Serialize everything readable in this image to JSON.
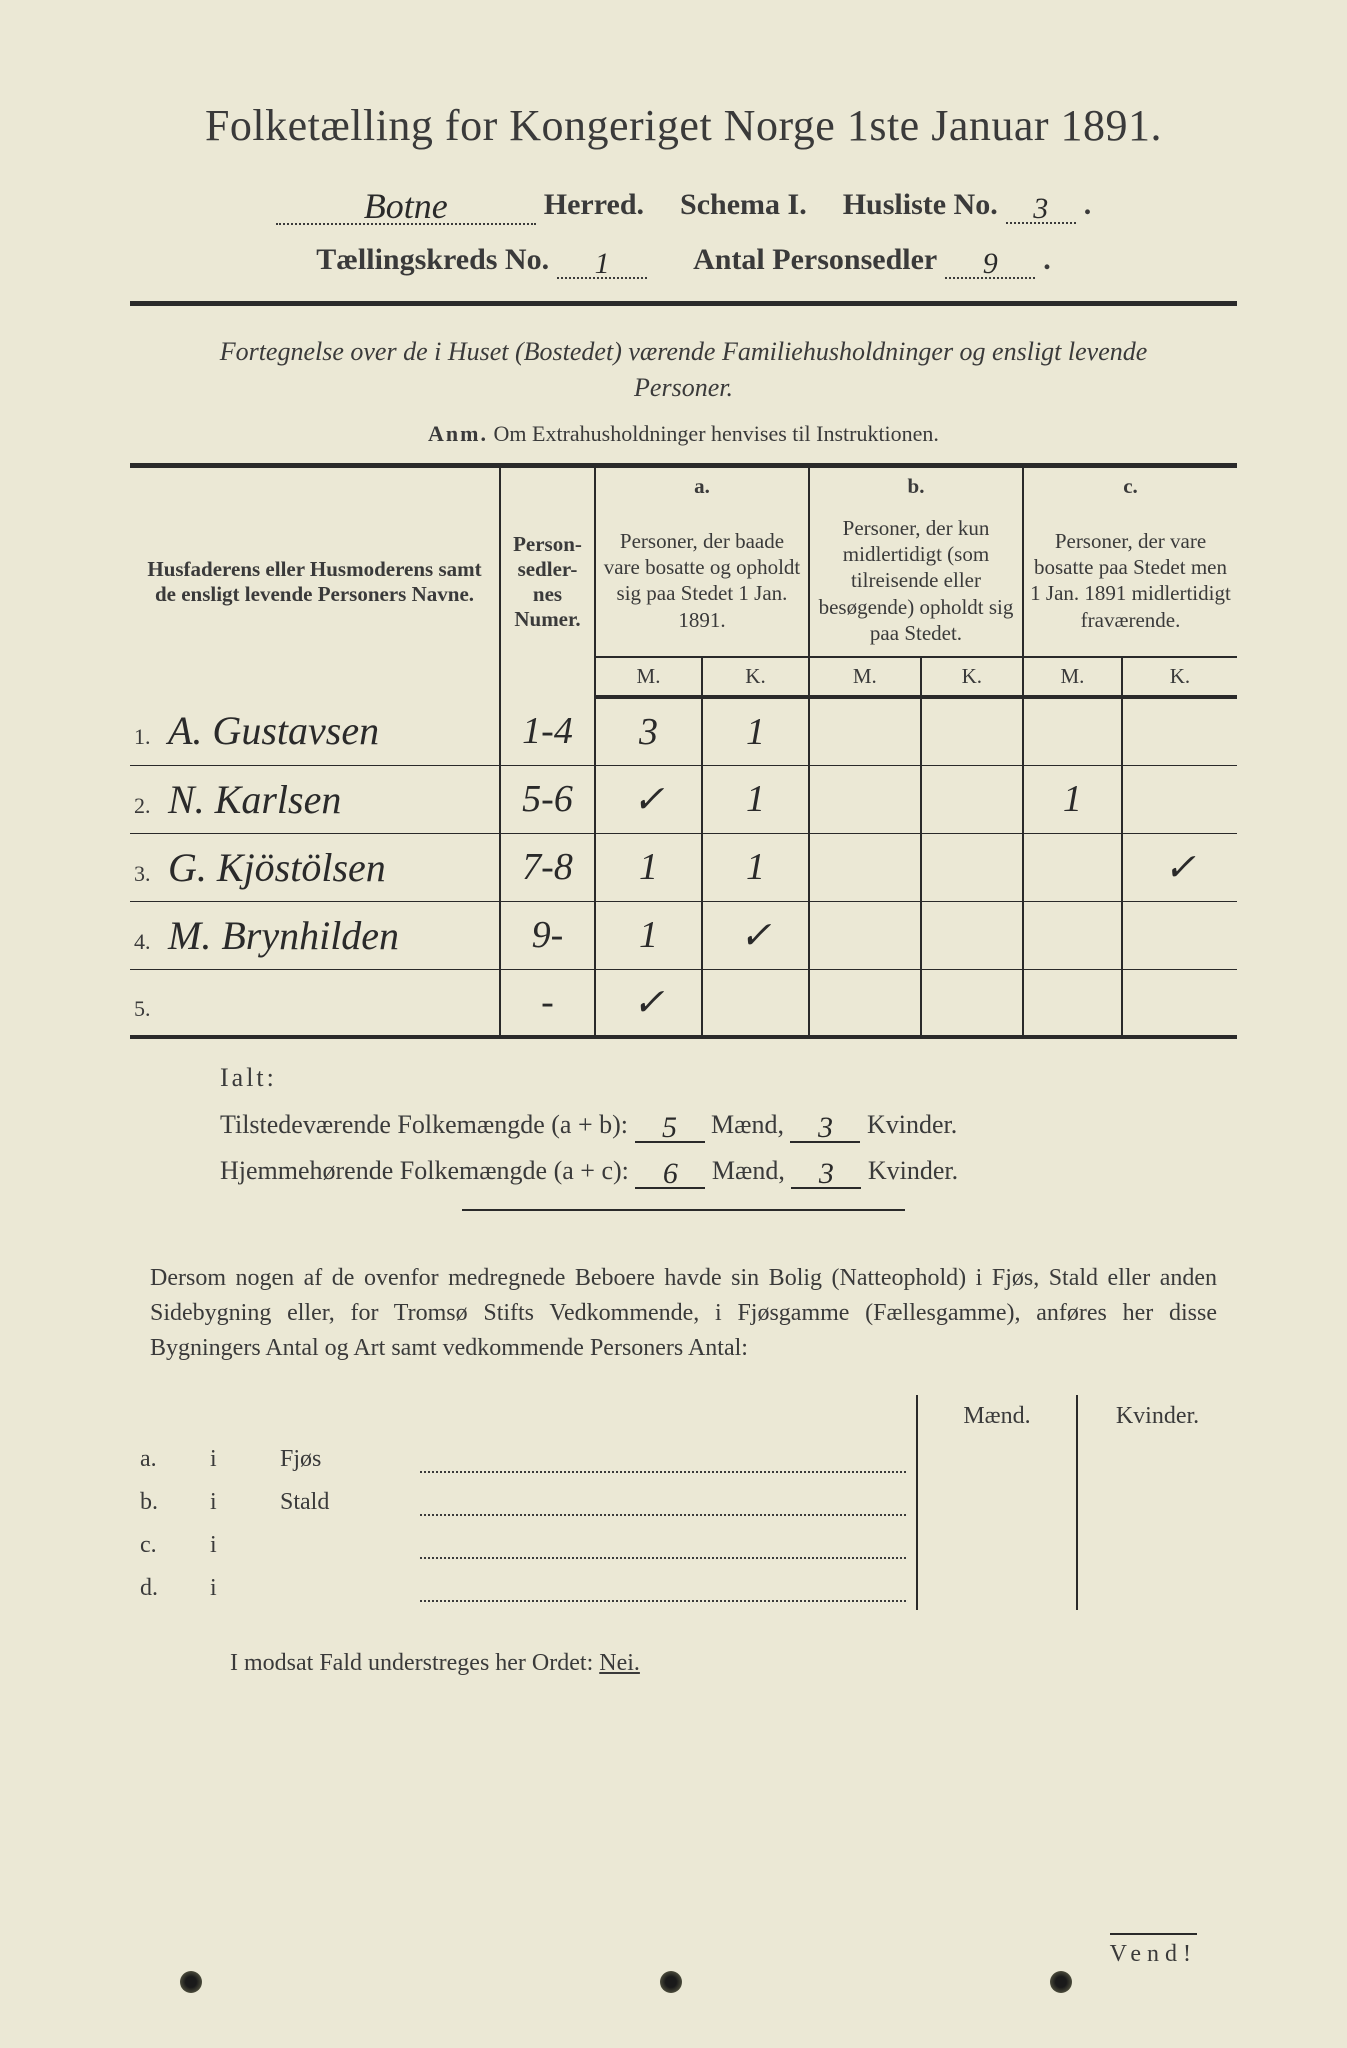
{
  "colors": {
    "paper": "#ebe8d5",
    "ink": "#3a3a3a",
    "handwriting": "#2a2a2a",
    "background": "#2a2a2a"
  },
  "title": "Folketælling for Kongeriget Norge 1ste Januar 1891.",
  "header": {
    "herred_value": "Botne",
    "herred_label": "Herred.",
    "schema_label": "Schema I.",
    "husliste_label": "Husliste No.",
    "husliste_value": "3",
    "kreds_label": "Tællingskreds No.",
    "kreds_value": "1",
    "antal_label": "Antal Personsedler",
    "antal_value": "9"
  },
  "instructions": "Fortegnelse over de i Huset (Bostedet) værende Familiehusholdninger og ensligt levende Personer.",
  "anm_label": "Anm.",
  "anm_text": "Om Extrahusholdninger henvises til Instruktionen.",
  "table": {
    "col_name": "Husfaderens eller Husmoderens samt de ensligt levende Personers Navne.",
    "col_num": "Person-\nsedler-\nnes\nNumer.",
    "col_a_letter": "a.",
    "col_a": "Personer, der baade vare bosatte og opholdt sig paa Stedet 1 Jan. 1891.",
    "col_b_letter": "b.",
    "col_b": "Personer, der kun midlertidigt (som tilreisende eller besøgende) opholdt sig paa Stedet.",
    "col_c_letter": "c.",
    "col_c": "Personer, der vare bosatte paa Stedet men 1 Jan. 1891 midlertidigt fraværende.",
    "m": "M.",
    "k": "K.",
    "rows": [
      {
        "n": "1.",
        "name": "A. Gustavsen",
        "num": "1-4",
        "aM": "3",
        "aK": "1",
        "bM": "",
        "bK": "",
        "cM": "",
        "cK": ""
      },
      {
        "n": "2.",
        "name": "N. Karlsen",
        "num": "5-6",
        "aM": "✓",
        "aK": "1",
        "bM": "",
        "bK": "",
        "cM": "1",
        "cK": ""
      },
      {
        "n": "3.",
        "name": "G. Kjöstölsen",
        "num": "7-8",
        "aM": "1",
        "aK": "1",
        "bM": "",
        "bK": "",
        "cM": "",
        "cK": "✓"
      },
      {
        "n": "4.",
        "name": "M. Brynhilden",
        "num": "9-",
        "aM": "1",
        "aK": "✓",
        "bM": "",
        "bK": "",
        "cM": "",
        "cK": ""
      },
      {
        "n": "5.",
        "name": "",
        "num": "-",
        "aM": "✓",
        "aK": "",
        "bM": "",
        "bK": "",
        "cM": "",
        "cK": ""
      }
    ]
  },
  "totals": {
    "ialt": "Ialt:",
    "line1_label": "Tilstedeværende Folkemængde (a + b):",
    "line1_m": "5",
    "line1_k": "3",
    "line2_label": "Hjemmehørende Folkemængde (a + c):",
    "line2_m": "6",
    "line2_k": "3",
    "maend": "Mænd,",
    "kvinder": "Kvinder."
  },
  "para": "Dersom nogen af de ovenfor medregnede Beboere havde sin Bolig (Natteophold) i Fjøs, Stald eller anden Sidebygning eller, for Tromsø Stifts Vedkommende, i Fjøsgamme (Fællesgamme), anføres her disse Bygningers Antal og Art samt vedkommende Personers Antal:",
  "outbuildings": {
    "maend": "Mænd.",
    "kvinder": "Kvinder.",
    "rows": [
      {
        "l": "a.",
        "i": "i",
        "t": "Fjøs"
      },
      {
        "l": "b.",
        "i": "i",
        "t": "Stald"
      },
      {
        "l": "c.",
        "i": "i",
        "t": ""
      },
      {
        "l": "d.",
        "i": "i",
        "t": ""
      }
    ]
  },
  "nei_line_pre": "I modsat Fald understreges her Ordet: ",
  "nei_word": "Nei.",
  "vend": "Vend!"
}
